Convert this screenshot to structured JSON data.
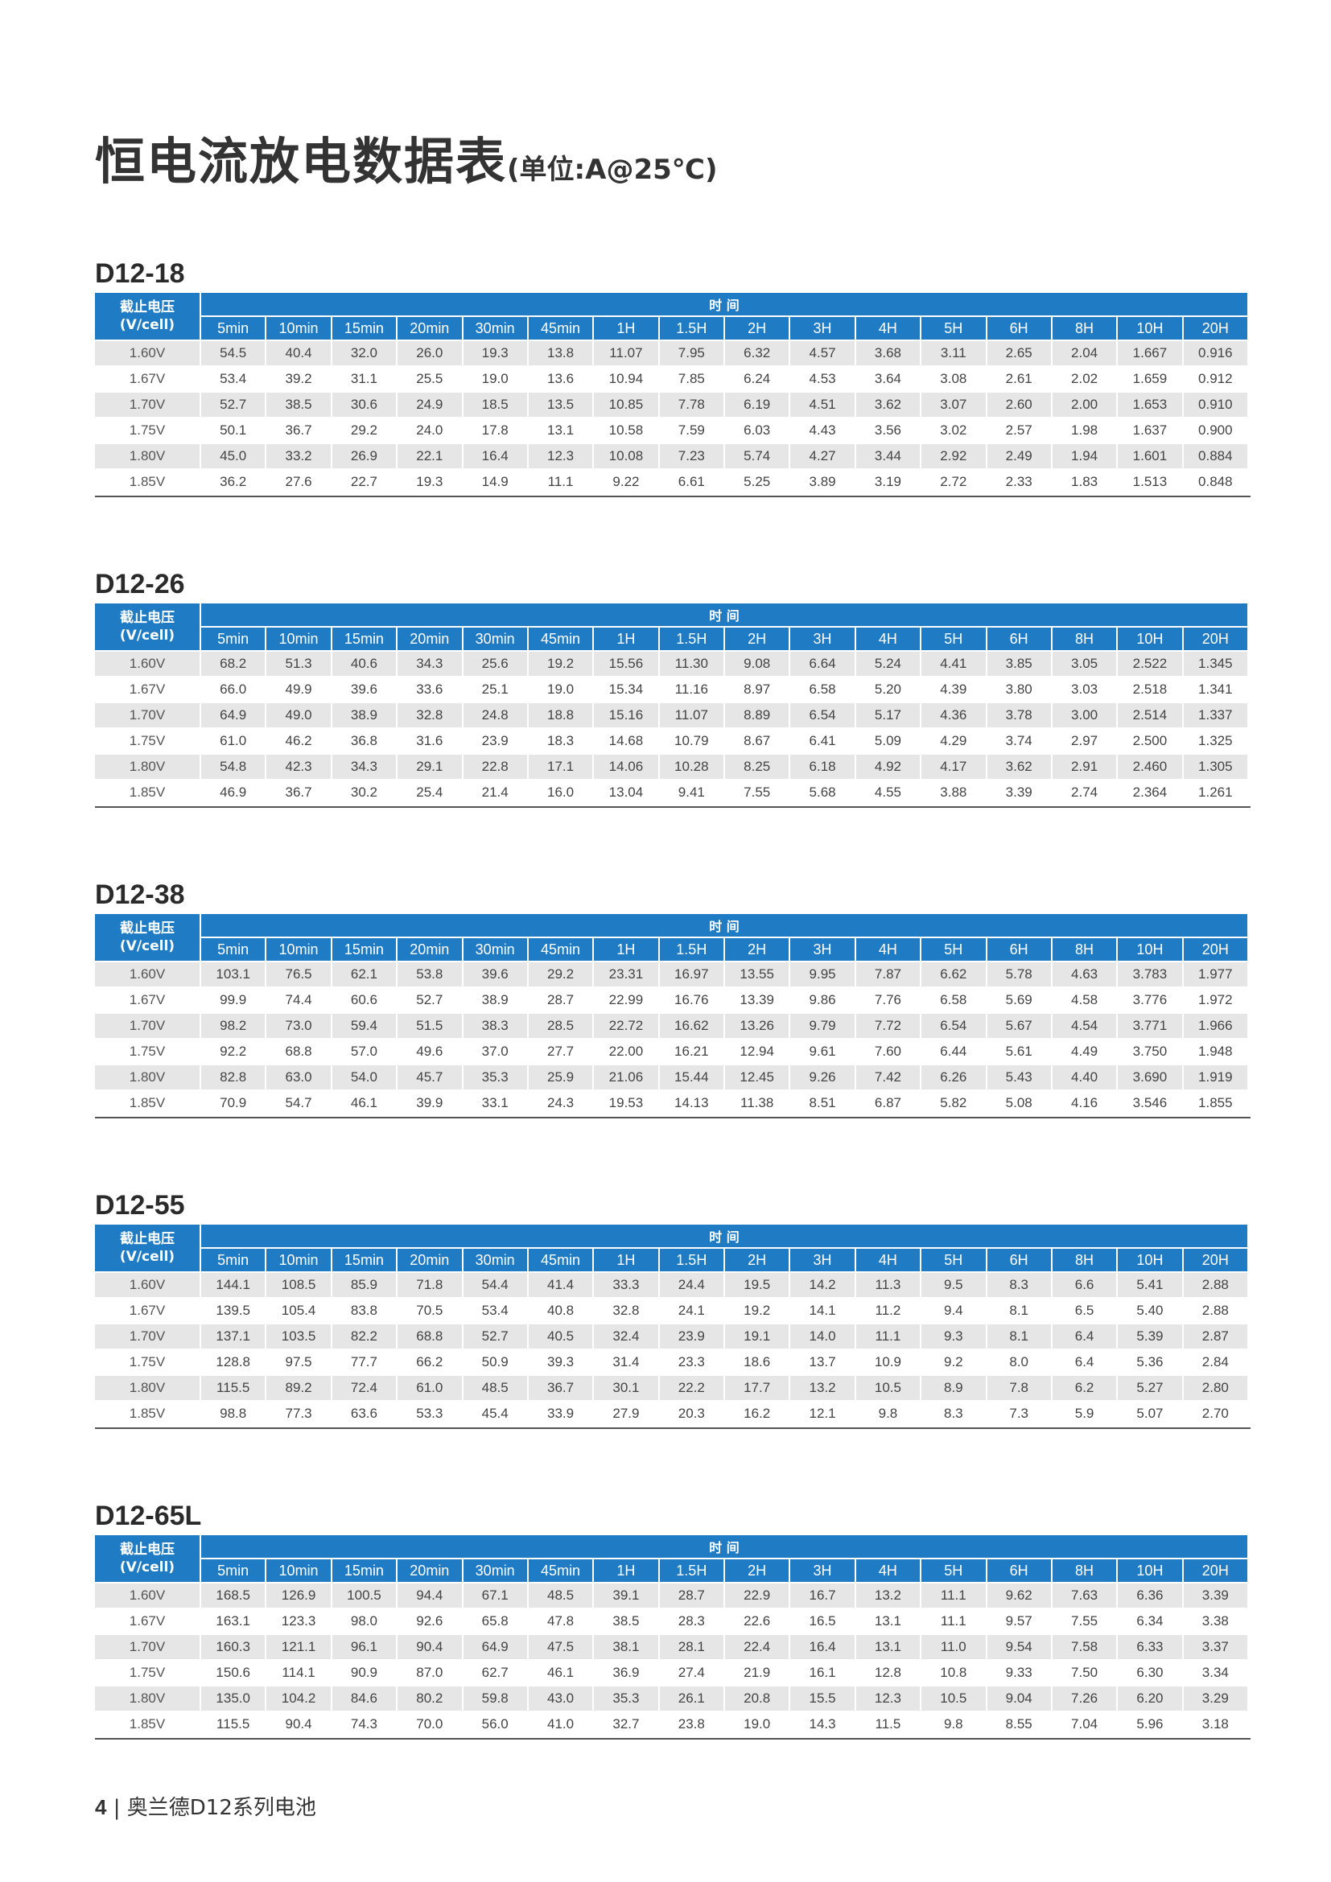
{
  "page_title": "恒电流放电数据表",
  "page_unit": "(单位:A@25℃)",
  "header": {
    "corner_line1": "截止电压",
    "corner_line2": "(V/cell)",
    "time_group": "时 间",
    "columns": [
      "5min",
      "10min",
      "15min",
      "20min",
      "30min",
      "45min",
      "1H",
      "1.5H",
      "2H",
      "3H",
      "4H",
      "5H",
      "6H",
      "8H",
      "10H",
      "20H"
    ]
  },
  "voltages": [
    "1.60V",
    "1.67V",
    "1.70V",
    "1.75V",
    "1.80V",
    "1.85V"
  ],
  "models": [
    {
      "name": "D12-18",
      "rows": [
        [
          "54.5",
          "40.4",
          "32.0",
          "26.0",
          "19.3",
          "13.8",
          "11.07",
          "7.95",
          "6.32",
          "4.57",
          "3.68",
          "3.11",
          "2.65",
          "2.04",
          "1.667",
          "0.916"
        ],
        [
          "53.4",
          "39.2",
          "31.1",
          "25.5",
          "19.0",
          "13.6",
          "10.94",
          "7.85",
          "6.24",
          "4.53",
          "3.64",
          "3.08",
          "2.61",
          "2.02",
          "1.659",
          "0.912"
        ],
        [
          "52.7",
          "38.5",
          "30.6",
          "24.9",
          "18.5",
          "13.5",
          "10.85",
          "7.78",
          "6.19",
          "4.51",
          "3.62",
          "3.07",
          "2.60",
          "2.00",
          "1.653",
          "0.910"
        ],
        [
          "50.1",
          "36.7",
          "29.2",
          "24.0",
          "17.8",
          "13.1",
          "10.58",
          "7.59",
          "6.03",
          "4.43",
          "3.56",
          "3.02",
          "2.57",
          "1.98",
          "1.637",
          "0.900"
        ],
        [
          "45.0",
          "33.2",
          "26.9",
          "22.1",
          "16.4",
          "12.3",
          "10.08",
          "7.23",
          "5.74",
          "4.27",
          "3.44",
          "2.92",
          "2.49",
          "1.94",
          "1.601",
          "0.884"
        ],
        [
          "36.2",
          "27.6",
          "22.7",
          "19.3",
          "14.9",
          "11.1",
          "9.22",
          "6.61",
          "5.25",
          "3.89",
          "3.19",
          "2.72",
          "2.33",
          "1.83",
          "1.513",
          "0.848"
        ]
      ]
    },
    {
      "name": "D12-26",
      "rows": [
        [
          "68.2",
          "51.3",
          "40.6",
          "34.3",
          "25.6",
          "19.2",
          "15.56",
          "11.30",
          "9.08",
          "6.64",
          "5.24",
          "4.41",
          "3.85",
          "3.05",
          "2.522",
          "1.345"
        ],
        [
          "66.0",
          "49.9",
          "39.6",
          "33.6",
          "25.1",
          "19.0",
          "15.34",
          "11.16",
          "8.97",
          "6.58",
          "5.20",
          "4.39",
          "3.80",
          "3.03",
          "2.518",
          "1.341"
        ],
        [
          "64.9",
          "49.0",
          "38.9",
          "32.8",
          "24.8",
          "18.8",
          "15.16",
          "11.07",
          "8.89",
          "6.54",
          "5.17",
          "4.36",
          "3.78",
          "3.00",
          "2.514",
          "1.337"
        ],
        [
          "61.0",
          "46.2",
          "36.8",
          "31.6",
          "23.9",
          "18.3",
          "14.68",
          "10.79",
          "8.67",
          "6.41",
          "5.09",
          "4.29",
          "3.74",
          "2.97",
          "2.500",
          "1.325"
        ],
        [
          "54.8",
          "42.3",
          "34.3",
          "29.1",
          "22.8",
          "17.1",
          "14.06",
          "10.28",
          "8.25",
          "6.18",
          "4.92",
          "4.17",
          "3.62",
          "2.91",
          "2.460",
          "1.305"
        ],
        [
          "46.9",
          "36.7",
          "30.2",
          "25.4",
          "21.4",
          "16.0",
          "13.04",
          "9.41",
          "7.55",
          "5.68",
          "4.55",
          "3.88",
          "3.39",
          "2.74",
          "2.364",
          "1.261"
        ]
      ]
    },
    {
      "name": "D12-38",
      "rows": [
        [
          "103.1",
          "76.5",
          "62.1",
          "53.8",
          "39.6",
          "29.2",
          "23.31",
          "16.97",
          "13.55",
          "9.95",
          "7.87",
          "6.62",
          "5.78",
          "4.63",
          "3.783",
          "1.977"
        ],
        [
          "99.9",
          "74.4",
          "60.6",
          "52.7",
          "38.9",
          "28.7",
          "22.99",
          "16.76",
          "13.39",
          "9.86",
          "7.76",
          "6.58",
          "5.69",
          "4.58",
          "3.776",
          "1.972"
        ],
        [
          "98.2",
          "73.0",
          "59.4",
          "51.5",
          "38.3",
          "28.5",
          "22.72",
          "16.62",
          "13.26",
          "9.79",
          "7.72",
          "6.54",
          "5.67",
          "4.54",
          "3.771",
          "1.966"
        ],
        [
          "92.2",
          "68.8",
          "57.0",
          "49.6",
          "37.0",
          "27.7",
          "22.00",
          "16.21",
          "12.94",
          "9.61",
          "7.60",
          "6.44",
          "5.61",
          "4.49",
          "3.750",
          "1.948"
        ],
        [
          "82.8",
          "63.0",
          "54.0",
          "45.7",
          "35.3",
          "25.9",
          "21.06",
          "15.44",
          "12.45",
          "9.26",
          "7.42",
          "6.26",
          "5.43",
          "4.40",
          "3.690",
          "1.919"
        ],
        [
          "70.9",
          "54.7",
          "46.1",
          "39.9",
          "33.1",
          "24.3",
          "19.53",
          "14.13",
          "11.38",
          "8.51",
          "6.87",
          "5.82",
          "5.08",
          "4.16",
          "3.546",
          "1.855"
        ]
      ]
    },
    {
      "name": "D12-55",
      "rows": [
        [
          "144.1",
          "108.5",
          "85.9",
          "71.8",
          "54.4",
          "41.4",
          "33.3",
          "24.4",
          "19.5",
          "14.2",
          "11.3",
          "9.5",
          "8.3",
          "6.6",
          "5.41",
          "2.88"
        ],
        [
          "139.5",
          "105.4",
          "83.8",
          "70.5",
          "53.4",
          "40.8",
          "32.8",
          "24.1",
          "19.2",
          "14.1",
          "11.2",
          "9.4",
          "8.1",
          "6.5",
          "5.40",
          "2.88"
        ],
        [
          "137.1",
          "103.5",
          "82.2",
          "68.8",
          "52.7",
          "40.5",
          "32.4",
          "23.9",
          "19.1",
          "14.0",
          "11.1",
          "9.3",
          "8.1",
          "6.4",
          "5.39",
          "2.87"
        ],
        [
          "128.8",
          "97.5",
          "77.7",
          "66.2",
          "50.9",
          "39.3",
          "31.4",
          "23.3",
          "18.6",
          "13.7",
          "10.9",
          "9.2",
          "8.0",
          "6.4",
          "5.36",
          "2.84"
        ],
        [
          "115.5",
          "89.2",
          "72.4",
          "61.0",
          "48.5",
          "36.7",
          "30.1",
          "22.2",
          "17.7",
          "13.2",
          "10.5",
          "8.9",
          "7.8",
          "6.2",
          "5.27",
          "2.80"
        ],
        [
          "98.8",
          "77.3",
          "63.6",
          "53.3",
          "45.4",
          "33.9",
          "27.9",
          "20.3",
          "16.2",
          "12.1",
          "9.8",
          "8.3",
          "7.3",
          "5.9",
          "5.07",
          "2.70"
        ]
      ]
    },
    {
      "name": "D12-65L",
      "rows": [
        [
          "168.5",
          "126.9",
          "100.5",
          "94.4",
          "67.1",
          "48.5",
          "39.1",
          "28.7",
          "22.9",
          "16.7",
          "13.2",
          "11.1",
          "9.62",
          "7.63",
          "6.36",
          "3.39"
        ],
        [
          "163.1",
          "123.3",
          "98.0",
          "92.6",
          "65.8",
          "47.8",
          "38.5",
          "28.3",
          "22.6",
          "16.5",
          "13.1",
          "11.1",
          "9.57",
          "7.55",
          "6.34",
          "3.38"
        ],
        [
          "160.3",
          "121.1",
          "96.1",
          "90.4",
          "64.9",
          "47.5",
          "38.1",
          "28.1",
          "22.4",
          "16.4",
          "13.1",
          "11.0",
          "9.54",
          "7.58",
          "6.33",
          "3.37"
        ],
        [
          "150.6",
          "114.1",
          "90.9",
          "87.0",
          "62.7",
          "46.1",
          "36.9",
          "27.4",
          "21.9",
          "16.1",
          "12.8",
          "10.8",
          "9.33",
          "7.50",
          "6.30",
          "3.34"
        ],
        [
          "135.0",
          "104.2",
          "84.6",
          "80.2",
          "59.8",
          "43.0",
          "35.3",
          "26.1",
          "20.8",
          "15.5",
          "12.3",
          "10.5",
          "9.04",
          "7.26",
          "6.20",
          "3.29"
        ],
        [
          "115.5",
          "90.4",
          "74.3",
          "70.0",
          "56.0",
          "41.0",
          "32.7",
          "23.8",
          "19.0",
          "14.3",
          "11.5",
          "9.8",
          "8.55",
          "7.04",
          "5.96",
          "3.18"
        ]
      ]
    }
  ],
  "footer": {
    "page_number": "4",
    "separator": "|",
    "text": "奥兰德D12系列电池"
  }
}
